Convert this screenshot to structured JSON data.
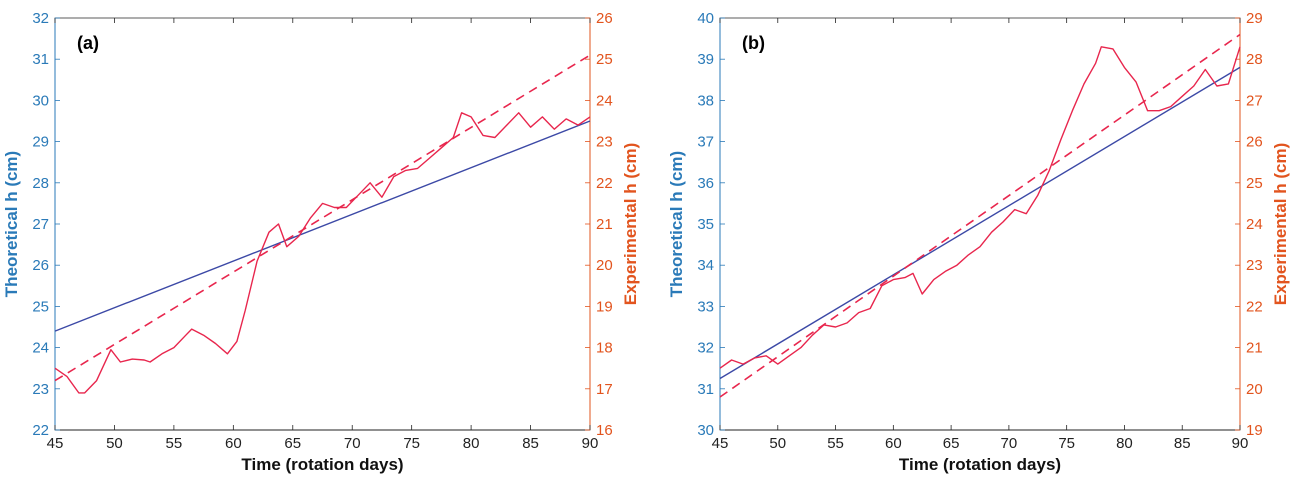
{
  "colors": {
    "left_axis": "#2a7ab8",
    "right_axis": "#e2541e",
    "theoretical_line": "#3c49a6",
    "experimental_line": "#e8264d",
    "axes_box": "#333333",
    "bottom_axis": "#222222"
  },
  "chart_data": [
    {
      "type": "line",
      "panel_label": "(a)",
      "xlabel": "Time (rotation days)",
      "ylabel_left": "Theoretical h (cm)",
      "ylabel_right": "Experimental h (cm)",
      "xlim": [
        45,
        90
      ],
      "ylim_left": [
        22,
        32
      ],
      "ylim_right": [
        16,
        26
      ],
      "x_ticks": [
        "45",
        "50",
        "55",
        "60",
        "65",
        "70",
        "75",
        "80",
        "85",
        "90"
      ],
      "y_ticks_left": [
        "22",
        "23",
        "24",
        "25",
        "26",
        "27",
        "28",
        "29",
        "30",
        "31",
        "32"
      ],
      "y_ticks_right": [
        "16",
        "17",
        "18",
        "19",
        "20",
        "21",
        "22",
        "23",
        "24",
        "25",
        "26"
      ],
      "grid": false,
      "series": [
        {
          "axis": "left",
          "style": "solid",
          "x": [
            45,
            90
          ],
          "y": [
            24.4,
            29.5
          ]
        },
        {
          "axis": "right",
          "style": "dashed",
          "x": [
            45,
            90
          ],
          "y": [
            17.2,
            25.1
          ]
        },
        {
          "axis": "right",
          "style": "solid",
          "x": [
            45,
            46,
            47,
            47.5,
            48.5,
            49.7,
            50.5,
            51.5,
            52.5,
            53,
            54,
            55,
            56,
            56.5,
            57.5,
            58.5,
            59.5,
            60.3,
            61,
            62,
            63,
            63.8,
            64.5,
            65.5,
            66.5,
            67.5,
            68.5,
            69.5,
            70.5,
            71.5,
            72.5,
            73.5,
            74.5,
            75.5,
            76.5,
            77.5,
            78.5,
            79.2,
            80,
            81,
            82,
            83,
            84,
            85,
            86,
            87,
            88,
            89,
            90
          ],
          "y": [
            17.5,
            17.3,
            16.9,
            16.9,
            17.2,
            17.95,
            17.65,
            17.72,
            17.7,
            17.65,
            17.85,
            18.0,
            18.3,
            18.45,
            18.3,
            18.1,
            17.85,
            18.15,
            18.9,
            20.1,
            20.8,
            21.0,
            20.45,
            20.7,
            21.15,
            21.5,
            21.4,
            21.4,
            21.7,
            22.0,
            21.65,
            22.15,
            22.3,
            22.35,
            22.6,
            22.85,
            23.1,
            23.7,
            23.6,
            23.15,
            23.1,
            23.4,
            23.7,
            23.35,
            23.6,
            23.3,
            23.55,
            23.4,
            23.6
          ]
        }
      ]
    },
    {
      "type": "line",
      "panel_label": "(b)",
      "xlabel": "Time (rotation days)",
      "ylabel_left": "Theoretical h (cm)",
      "ylabel_right": "Experimental h (cm)",
      "xlim": [
        45,
        90
      ],
      "ylim_left": [
        30,
        40
      ],
      "ylim_right": [
        19,
        29
      ],
      "x_ticks": [
        "45",
        "50",
        "55",
        "60",
        "65",
        "70",
        "75",
        "80",
        "85",
        "90"
      ],
      "y_ticks_left": [
        "30",
        "31",
        "32",
        "33",
        "34",
        "35",
        "36",
        "37",
        "38",
        "39",
        "40"
      ],
      "y_ticks_right": [
        "19",
        "20",
        "21",
        "22",
        "23",
        "24",
        "25",
        "26",
        "27",
        "28",
        "29"
      ],
      "grid": false,
      "series": [
        {
          "axis": "left",
          "style": "solid",
          "x": [
            45,
            90
          ],
          "y": [
            31.25,
            38.8
          ]
        },
        {
          "axis": "right",
          "style": "dashed",
          "x": [
            45,
            90
          ],
          "y": [
            19.8,
            28.6
          ]
        },
        {
          "axis": "right",
          "style": "solid",
          "x": [
            45,
            46,
            47,
            48,
            49,
            50,
            51,
            52,
            53,
            54,
            55,
            56,
            57,
            58,
            59,
            60,
            61,
            61.7,
            62.5,
            63.5,
            64.5,
            65.5,
            66.5,
            67.5,
            68.5,
            69.5,
            70.5,
            71.5,
            72.5,
            73.5,
            74.5,
            75.5,
            76.5,
            77.5,
            78,
            79,
            80,
            81,
            82,
            83,
            84,
            85,
            86,
            87,
            88,
            89,
            90
          ],
          "y": [
            20.5,
            20.7,
            20.6,
            20.75,
            20.8,
            20.6,
            20.8,
            21.0,
            21.3,
            21.55,
            21.5,
            21.6,
            21.85,
            21.95,
            22.5,
            22.65,
            22.7,
            22.8,
            22.3,
            22.65,
            22.85,
            23.0,
            23.25,
            23.45,
            23.8,
            24.05,
            24.35,
            24.25,
            24.7,
            25.3,
            26.05,
            26.75,
            27.4,
            27.9,
            28.3,
            28.25,
            27.8,
            27.45,
            26.75,
            26.75,
            26.85,
            27.1,
            27.35,
            27.75,
            27.35,
            27.4,
            28.3
          ]
        }
      ]
    }
  ]
}
